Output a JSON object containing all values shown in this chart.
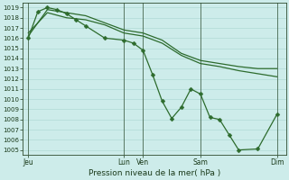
{
  "xlabel": "Pression niveau de la mer( hPa )",
  "background_color": "#cdecea",
  "grid_color": "#a8d5d0",
  "line_color": "#2d6b2d",
  "ylim": [
    1004.5,
    1019.5
  ],
  "yticks": [
    1005,
    1006,
    1007,
    1008,
    1009,
    1010,
    1011,
    1012,
    1013,
    1014,
    1015,
    1016,
    1017,
    1018,
    1019
  ],
  "xtick_positions": [
    0,
    5,
    6,
    9,
    13
  ],
  "xtick_labels": [
    "Jeu",
    "Lun",
    "Ven",
    "Sam",
    "Dim"
  ],
  "vline_positions": [
    0,
    5,
    6,
    9,
    13
  ],
  "xlim": [
    -0.3,
    13.5
  ],
  "line1_x": [
    0,
    1,
    2,
    3,
    4,
    5,
    6,
    7,
    8,
    9,
    10,
    11,
    12,
    13
  ],
  "line1_y": [
    1016.2,
    1018.8,
    1018.5,
    1018.2,
    1017.5,
    1016.8,
    1016.5,
    1015.8,
    1014.5,
    1013.8,
    1013.5,
    1013.2,
    1013.0,
    1013.0
  ],
  "line2_x": [
    0,
    0.5,
    1,
    1.5,
    2,
    2.5,
    3,
    4,
    5,
    5.5,
    6,
    6.5,
    7,
    7.5,
    8,
    8.5,
    9,
    9.5,
    10,
    10.5,
    11,
    12,
    13
  ],
  "line2_y": [
    1016.0,
    1018.6,
    1019.0,
    1018.8,
    1018.4,
    1017.8,
    1017.2,
    1016.0,
    1015.8,
    1015.5,
    1014.8,
    1012.4,
    1009.8,
    1008.1,
    1009.2,
    1011.0,
    1010.5,
    1008.2,
    1008.0,
    1006.5,
    1005.0,
    1005.1,
    1008.5
  ],
  "line3_x": [
    0,
    1,
    2,
    3,
    4,
    5,
    6,
    7,
    8,
    9,
    10,
    11,
    12,
    13
  ],
  "line3_y": [
    1016.5,
    1018.5,
    1018.0,
    1017.8,
    1017.3,
    1016.5,
    1016.2,
    1015.5,
    1014.3,
    1013.5,
    1013.2,
    1012.8,
    1012.5,
    1012.2
  ]
}
